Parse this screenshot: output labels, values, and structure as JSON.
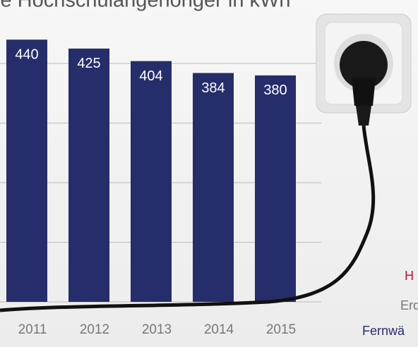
{
  "chart_data": {
    "type": "bar",
    "title": "je Hochschulangehöriger in kWh",
    "categories": [
      "2011",
      "2012",
      "2013",
      "2014",
      "2015"
    ],
    "values": [
      440,
      425,
      404,
      384,
      380
    ],
    "color": "#262d6b",
    "ylim": [
      0,
      500
    ],
    "yticks": [
      0,
      100,
      200,
      300,
      400
    ],
    "grid": true,
    "legend": [
      "H",
      "Erd",
      "Fernwä"
    ]
  }
}
